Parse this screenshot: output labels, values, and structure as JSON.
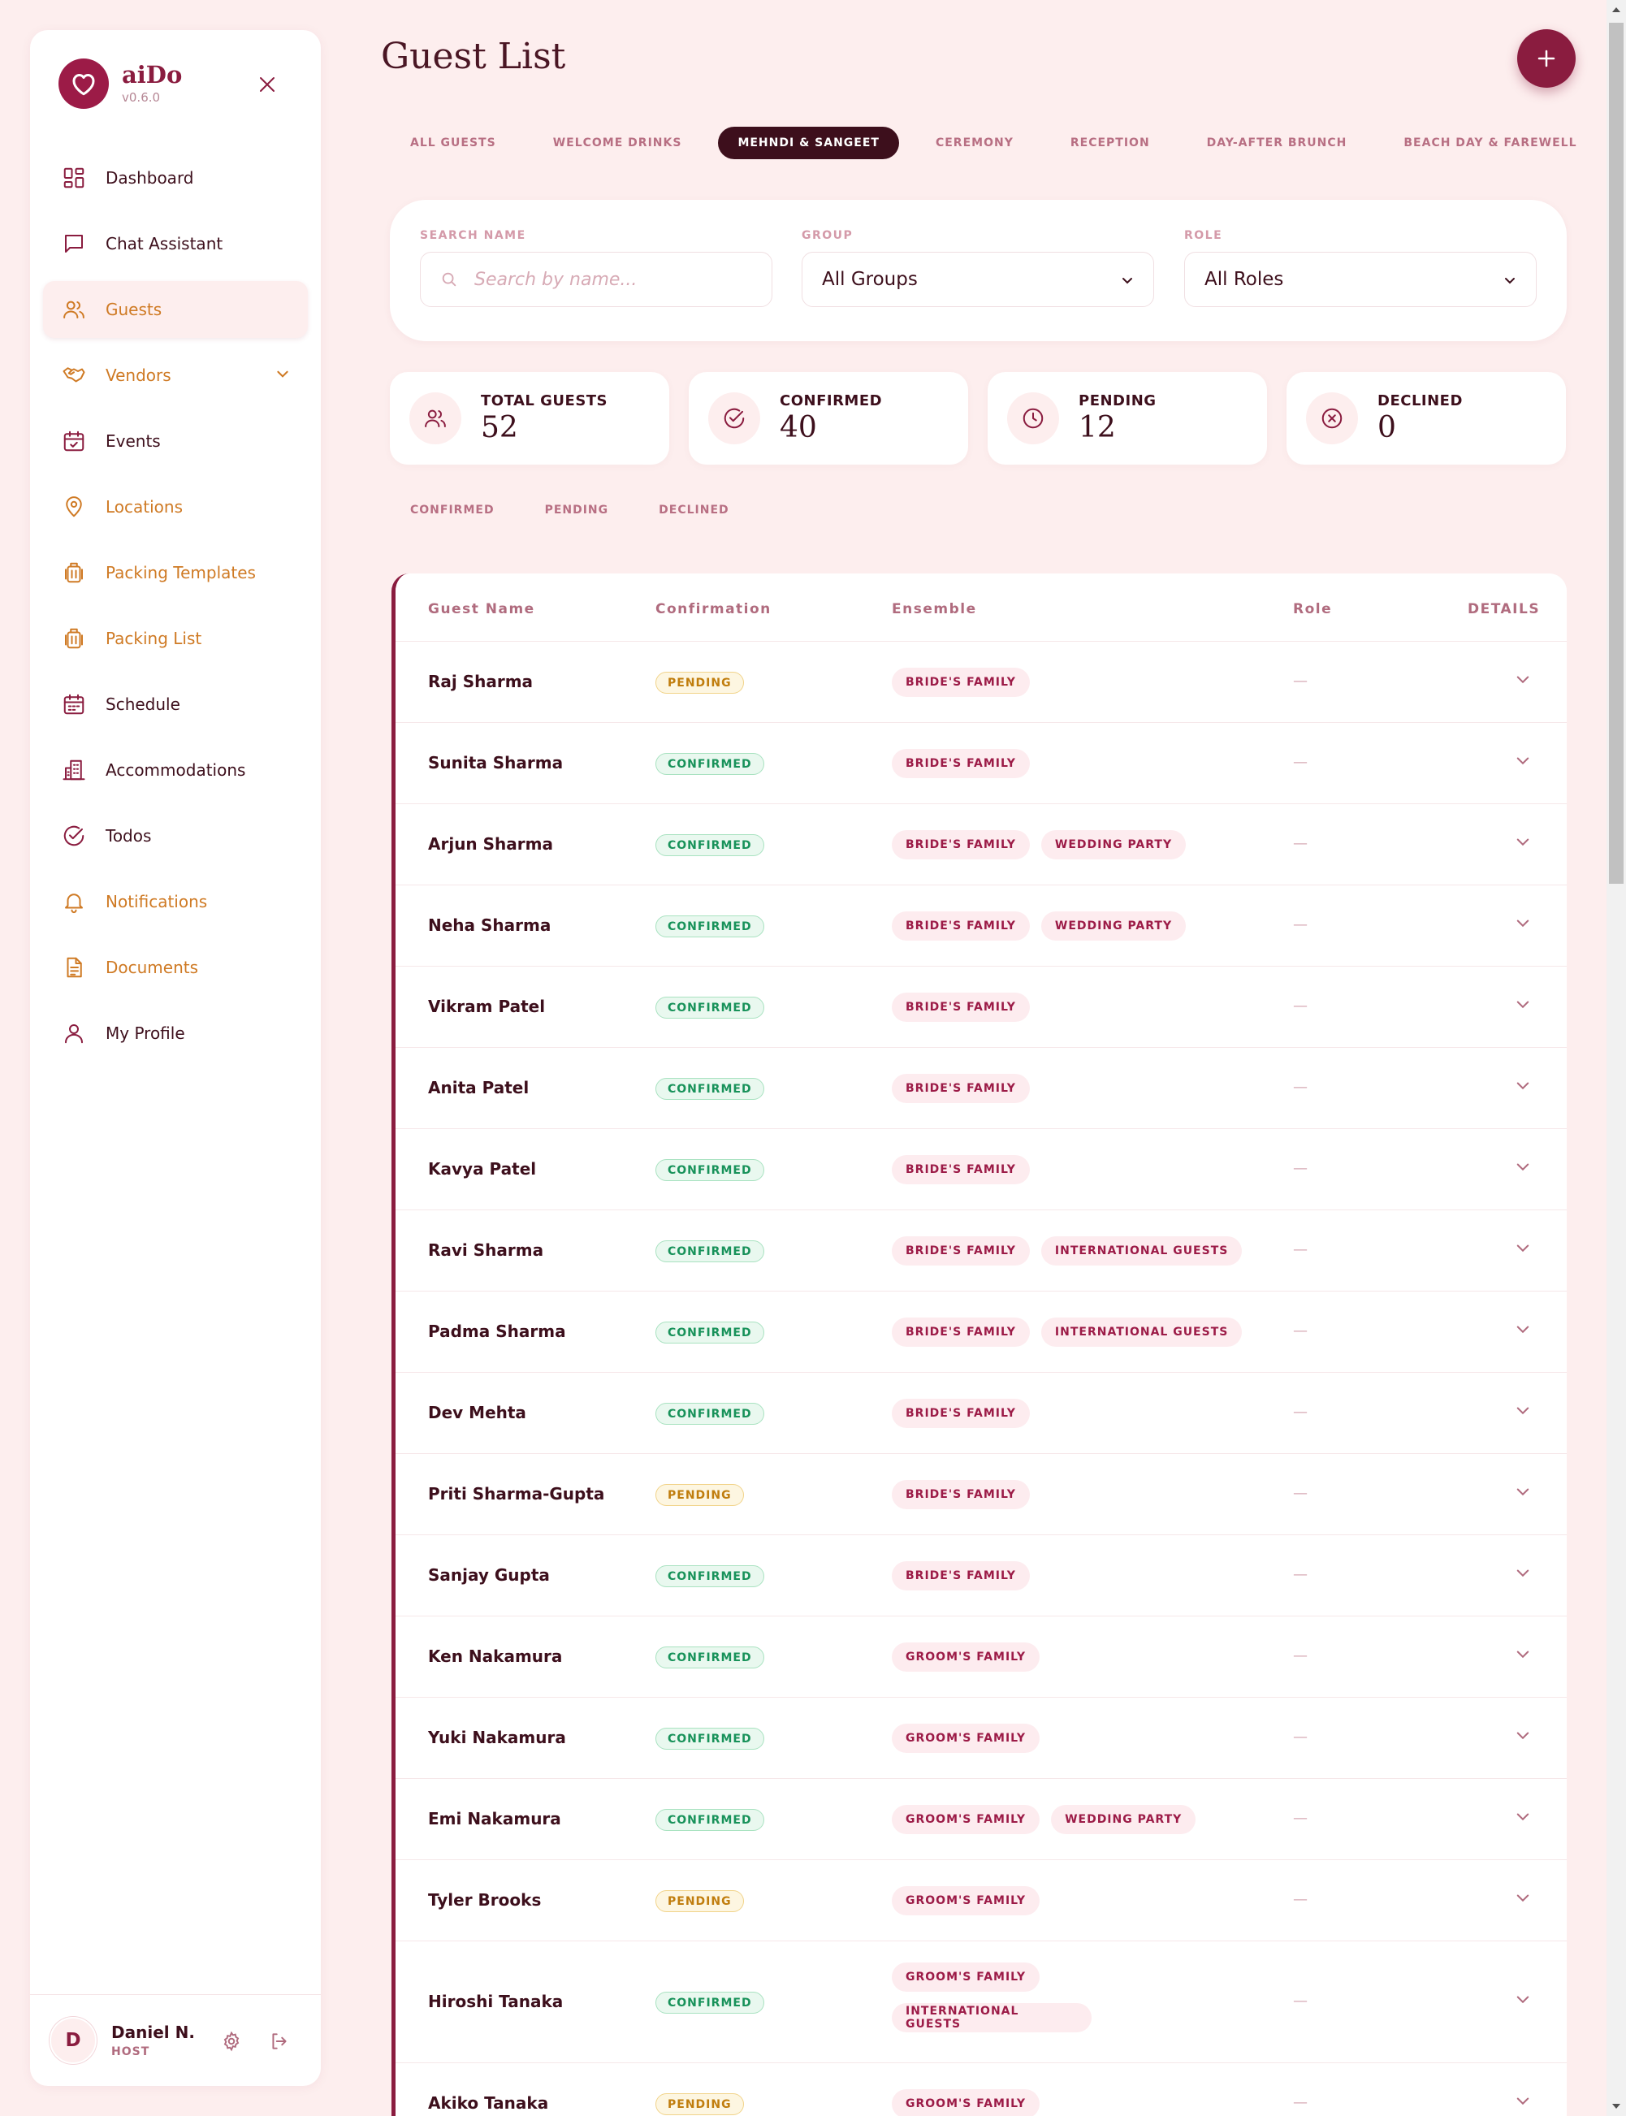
{
  "app": {
    "name": "aiDo",
    "version": "v0.6.0"
  },
  "nav": [
    {
      "label": "Dashboard",
      "icon": "dashboard-icon",
      "color": "dark"
    },
    {
      "label": "Chat Assistant",
      "icon": "chat-icon",
      "color": "dark"
    },
    {
      "label": "Guests",
      "icon": "users-icon",
      "color": "orange",
      "active": true
    },
    {
      "label": "Vendors",
      "icon": "handshake-icon",
      "color": "orange",
      "expandable": true
    },
    {
      "label": "Events",
      "icon": "calendar-check-icon",
      "color": "dark"
    },
    {
      "label": "Locations",
      "icon": "map-pin-icon",
      "color": "orange"
    },
    {
      "label": "Packing Templates",
      "icon": "luggage-icon",
      "color": "orange"
    },
    {
      "label": "Packing List",
      "icon": "luggage-icon",
      "color": "orange"
    },
    {
      "label": "Schedule",
      "icon": "calendar-icon",
      "color": "dark"
    },
    {
      "label": "Accommodations",
      "icon": "building-icon",
      "color": "dark"
    },
    {
      "label": "Todos",
      "icon": "check-circle-icon",
      "color": "dark"
    },
    {
      "label": "Notifications",
      "icon": "bell-icon",
      "color": "orange"
    },
    {
      "label": "Documents",
      "icon": "document-icon",
      "color": "orange"
    },
    {
      "label": "My Profile",
      "icon": "user-icon",
      "color": "dark"
    }
  ],
  "user": {
    "initial": "D",
    "name": "Daniel N.",
    "role": "HOST"
  },
  "page": {
    "title": "Guest List"
  },
  "tabs": [
    "ALL GUESTS",
    "WELCOME DRINKS",
    "MEHNDI & SANGEET",
    "CEREMONY",
    "RECEPTION",
    "DAY-AFTER BRUNCH",
    "BEACH DAY & FAREWELL"
  ],
  "active_tab": "MEHNDI & SANGEET",
  "filters": {
    "search_label": "SEARCH NAME",
    "search_placeholder": "Search by name...",
    "group_label": "GROUP",
    "group_value": "All Groups",
    "role_label": "ROLE",
    "role_value": "All Roles"
  },
  "stats": [
    {
      "label": "TOTAL GUESTS",
      "value": "52",
      "icon": "users-icon"
    },
    {
      "label": "CONFIRMED",
      "value": "40",
      "icon": "check-circle-icon"
    },
    {
      "label": "PENDING",
      "value": "12",
      "icon": "clock-icon"
    },
    {
      "label": "DECLINED",
      "value": "0",
      "icon": "x-circle-icon"
    }
  ],
  "status_filters": [
    "CONFIRMED",
    "PENDING",
    "DECLINED"
  ],
  "table": {
    "headers": {
      "name": "Guest Name",
      "confirmation": "Confirmation",
      "ensemble": "Ensemble",
      "role": "Role",
      "details": "DETAILS"
    },
    "rows": [
      {
        "name": "Raj Sharma",
        "status": "PENDING",
        "ensemble": [
          "BRIDE'S FAMILY"
        ],
        "role": "—"
      },
      {
        "name": "Sunita Sharma",
        "status": "CONFIRMED",
        "ensemble": [
          "BRIDE'S FAMILY"
        ],
        "role": "—"
      },
      {
        "name": "Arjun Sharma",
        "status": "CONFIRMED",
        "ensemble": [
          "BRIDE'S FAMILY",
          "WEDDING PARTY"
        ],
        "role": "—"
      },
      {
        "name": "Neha Sharma",
        "status": "CONFIRMED",
        "ensemble": [
          "BRIDE'S FAMILY",
          "WEDDING PARTY"
        ],
        "role": "—"
      },
      {
        "name": "Vikram Patel",
        "status": "CONFIRMED",
        "ensemble": [
          "BRIDE'S FAMILY"
        ],
        "role": "—"
      },
      {
        "name": "Anita Patel",
        "status": "CONFIRMED",
        "ensemble": [
          "BRIDE'S FAMILY"
        ],
        "role": "—"
      },
      {
        "name": "Kavya Patel",
        "status": "CONFIRMED",
        "ensemble": [
          "BRIDE'S FAMILY"
        ],
        "role": "—"
      },
      {
        "name": "Ravi Sharma",
        "status": "CONFIRMED",
        "ensemble": [
          "BRIDE'S FAMILY",
          "INTERNATIONAL GUESTS"
        ],
        "role": "—"
      },
      {
        "name": "Padma Sharma",
        "status": "CONFIRMED",
        "ensemble": [
          "BRIDE'S FAMILY",
          "INTERNATIONAL GUESTS"
        ],
        "role": "—"
      },
      {
        "name": "Dev Mehta",
        "status": "CONFIRMED",
        "ensemble": [
          "BRIDE'S FAMILY"
        ],
        "role": "—"
      },
      {
        "name": "Priti Sharma-Gupta",
        "status": "PENDING",
        "ensemble": [
          "BRIDE'S FAMILY"
        ],
        "role": "—"
      },
      {
        "name": "Sanjay Gupta",
        "status": "CONFIRMED",
        "ensemble": [
          "BRIDE'S FAMILY"
        ],
        "role": "—"
      },
      {
        "name": "Ken Nakamura",
        "status": "CONFIRMED",
        "ensemble": [
          "GROOM'S FAMILY"
        ],
        "role": "—"
      },
      {
        "name": "Yuki Nakamura",
        "status": "CONFIRMED",
        "ensemble": [
          "GROOM'S FAMILY"
        ],
        "role": "—"
      },
      {
        "name": "Emi Nakamura",
        "status": "CONFIRMED",
        "ensemble": [
          "GROOM'S FAMILY",
          "WEDDING PARTY"
        ],
        "role": "—"
      },
      {
        "name": "Tyler Brooks",
        "status": "PENDING",
        "ensemble": [
          "GROOM'S FAMILY"
        ],
        "role": "—"
      },
      {
        "name": "Hiroshi Tanaka",
        "status": "CONFIRMED",
        "ensemble": [
          "GROOM'S FAMILY",
          "INTERNATIONAL GUESTS"
        ],
        "role": "—"
      },
      {
        "name": "Akiko Tanaka",
        "status": "PENDING",
        "ensemble": [
          "GROOM'S FAMILY"
        ],
        "role": "—"
      }
    ]
  },
  "colors": {
    "brand": "#8a1c3f",
    "background": "#fdeeee",
    "orange": "#cf7a24",
    "pending": "#c07d0d",
    "confirmed": "#18925a"
  }
}
